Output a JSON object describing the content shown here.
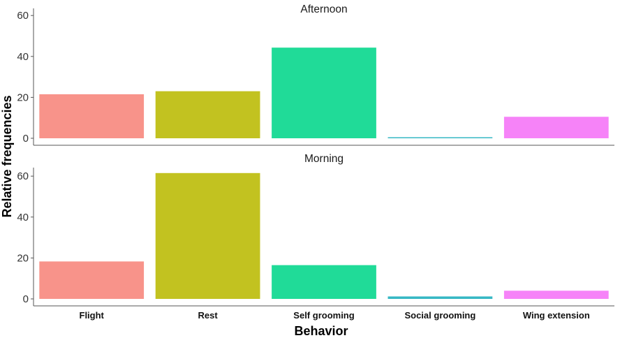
{
  "chart_data": {
    "type": "bar",
    "xlabel": "Behavior",
    "ylabel": "Relative frequencies",
    "categories": [
      "Flight",
      "Rest",
      "Self grooming",
      "Social grooming",
      "Wing extension"
    ],
    "colors": [
      "#f8938a",
      "#c2c220",
      "#20db98",
      "#36b8c4",
      "#f683f8"
    ],
    "ylim": [
      0,
      64
    ],
    "yticks": [
      0,
      20,
      40,
      60
    ],
    "grid": false,
    "legend": "none",
    "panels": [
      {
        "title": "Afternoon",
        "values": [
          21.5,
          23,
          44.3,
          0.4,
          10.5
        ]
      },
      {
        "title": "Morning",
        "values": [
          18.3,
          61.5,
          16.5,
          1.2,
          4.0
        ]
      }
    ]
  }
}
